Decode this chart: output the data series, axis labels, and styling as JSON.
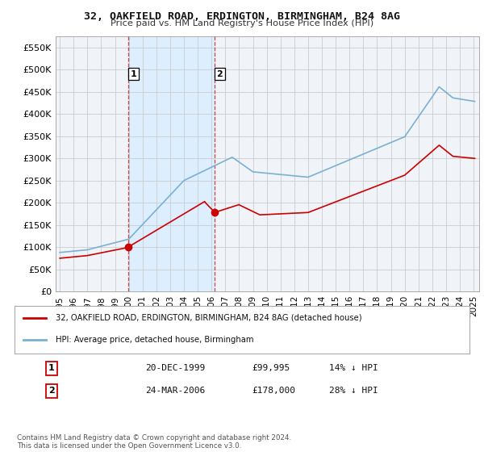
{
  "title": "32, OAKFIELD ROAD, ERDINGTON, BIRMINGHAM, B24 8AG",
  "subtitle": "Price paid vs. HM Land Registry's House Price Index (HPI)",
  "legend_property": "32, OAKFIELD ROAD, ERDINGTON, BIRMINGHAM, B24 8AG (detached house)",
  "legend_hpi": "HPI: Average price, detached house, Birmingham",
  "footer": "Contains HM Land Registry data © Crown copyright and database right 2024.\nThis data is licensed under the Open Government Licence v3.0.",
  "transactions": [
    {
      "num": "1",
      "date": "20-DEC-1999",
      "price": "£99,995",
      "hpi_diff": "14% ↓ HPI"
    },
    {
      "num": "2",
      "date": "24-MAR-2006",
      "price": "£178,000",
      "hpi_diff": "28% ↓ HPI"
    }
  ],
  "sale_prices": [
    99995,
    178000
  ],
  "property_color": "#cc0000",
  "hpi_color": "#7ab0d4",
  "shade_color": "#ddeeff",
  "background_color": "#ffffff",
  "grid_color": "#cccccc",
  "ylim": [
    0,
    575000
  ],
  "yticks": [
    0,
    50000,
    100000,
    150000,
    200000,
    250000,
    300000,
    350000,
    400000,
    450000,
    500000,
    550000
  ],
  "xlim_start": 1994.7,
  "xlim_end": 2025.4
}
